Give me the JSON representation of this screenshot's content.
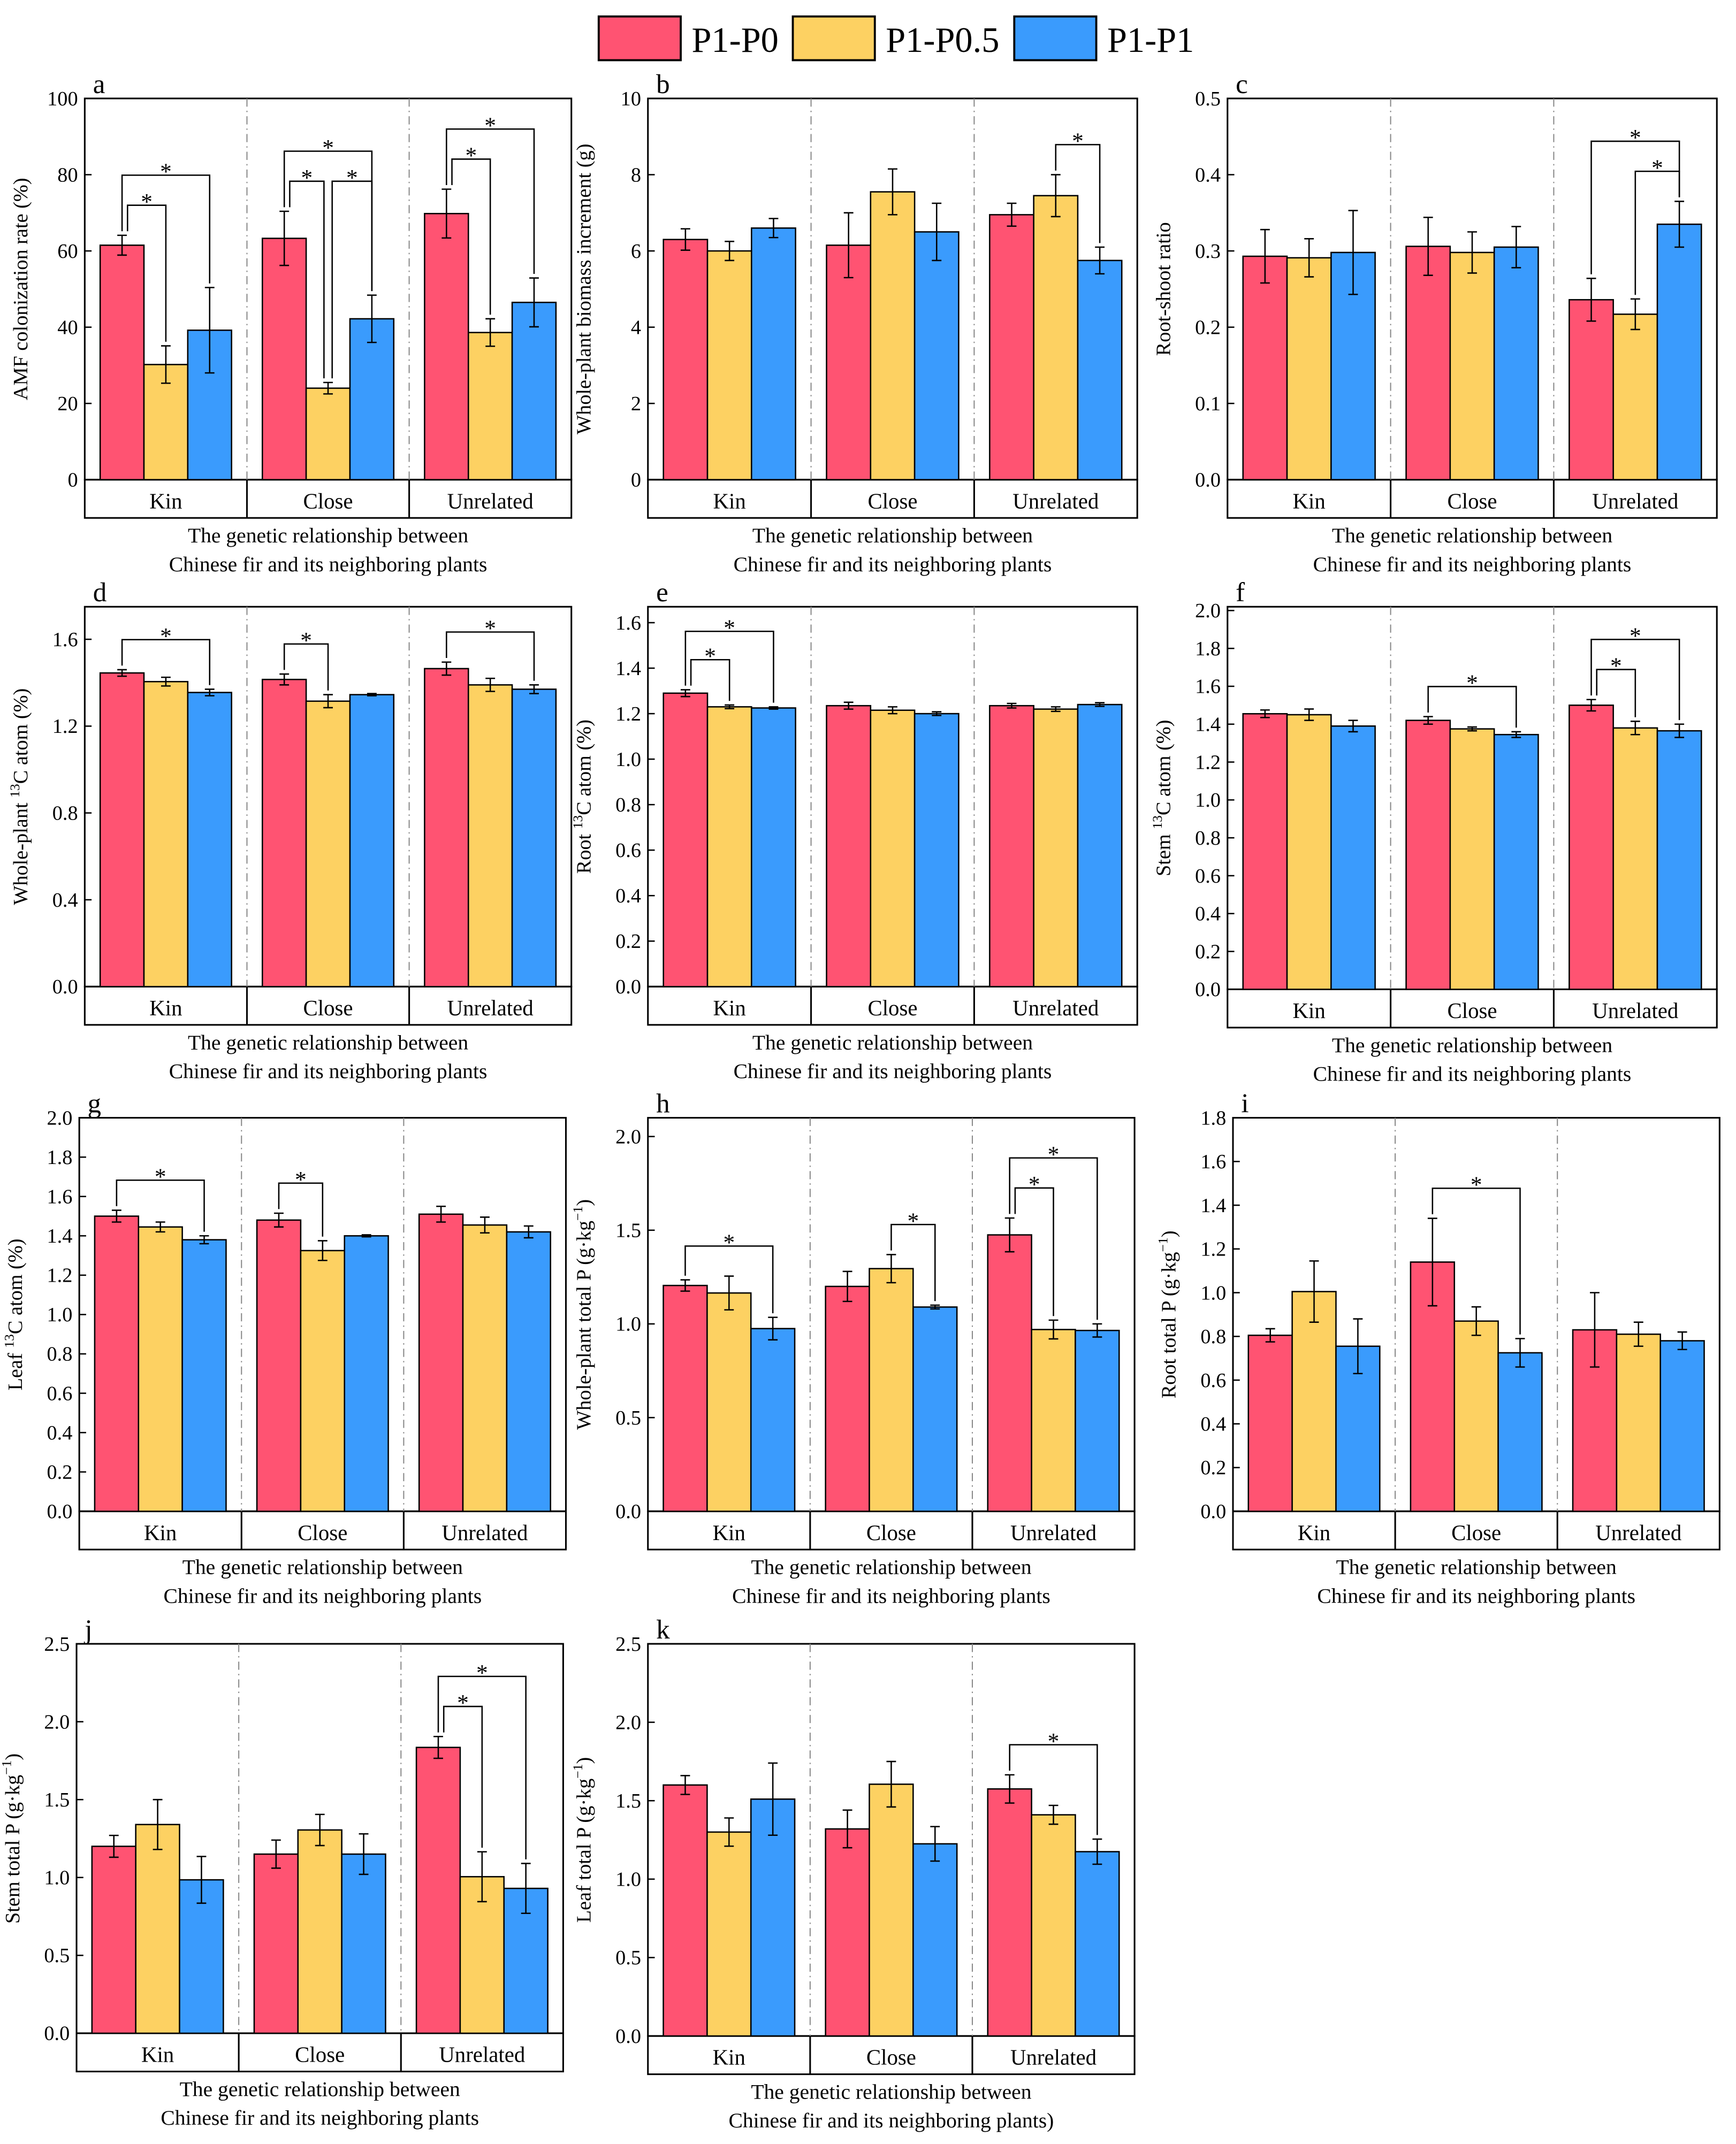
{
  "legend": [
    {
      "label": "P1-P0",
      "color": "#ff5372"
    },
    {
      "label": "P1-P0.5",
      "color": "#fdd162"
    },
    {
      "label": "P1-P1",
      "color": "#3a9bfd"
    }
  ],
  "chart_data": [
    {
      "id": "a",
      "type": "bar",
      "ylabel": {
        "pre": "AMF colonization rate (%)",
        "sup": "",
        "post": ""
      },
      "xlabel": [
        "The genetic relationship between",
        "Chinese fir and its neighboring plants"
      ],
      "categories": [
        "Kin",
        "Close",
        "Unrelated"
      ],
      "ylim": [
        0,
        100
      ],
      "yticks": [
        "0",
        "20",
        "40",
        "60",
        "80",
        "100"
      ],
      "ytick_values": [
        0,
        20,
        40,
        60,
        80,
        100
      ],
      "series": [
        {
          "name": "P1-P0",
          "values": [
            61.5,
            63.3,
            69.8
          ],
          "errors": [
            2.6,
            7.1,
            6.4
          ]
        },
        {
          "name": "P1-P0.5",
          "values": [
            30.2,
            24.0,
            38.6
          ],
          "errors": [
            4.9,
            1.5,
            3.6
          ]
        },
        {
          "name": "P1-P1",
          "values": [
            39.2,
            42.2,
            46.5
          ],
          "errors": [
            11.2,
            6.2,
            6.4
          ]
        }
      ],
      "significance": [
        [
          0,
          0,
          1
        ],
        [
          0,
          0,
          2
        ],
        [
          1,
          0,
          1
        ],
        [
          1,
          1,
          2
        ],
        [
          1,
          0,
          2
        ],
        [
          2,
          0,
          1
        ],
        [
          2,
          0,
          2
        ]
      ]
    },
    {
      "id": "b",
      "type": "bar",
      "ylabel": {
        "pre": "Whole-plant biomass increment (g)",
        "sup": "",
        "post": ""
      },
      "xlabel": [
        "The genetic relationship between",
        "Chinese fir and its neighboring plants"
      ],
      "categories": [
        "Kin",
        "Close",
        "Unrelated"
      ],
      "ylim": [
        0,
        10
      ],
      "yticks": [
        "0",
        "2",
        "4",
        "6",
        "8",
        "10"
      ],
      "ytick_values": [
        0,
        2,
        4,
        6,
        8,
        10
      ],
      "series": [
        {
          "name": "P1-P0",
          "values": [
            6.3,
            6.15,
            6.95
          ],
          "errors": [
            0.28,
            0.85,
            0.3
          ]
        },
        {
          "name": "P1-P0.5",
          "values": [
            6.0,
            7.55,
            7.45
          ],
          "errors": [
            0.25,
            0.6,
            0.55
          ]
        },
        {
          "name": "P1-P1",
          "values": [
            6.6,
            6.5,
            5.75
          ],
          "errors": [
            0.25,
            0.75,
            0.35
          ]
        }
      ],
      "significance": [
        [
          2,
          1,
          2
        ]
      ]
    },
    {
      "id": "c",
      "type": "bar",
      "ylabel": {
        "pre": "Root-shoot ratio",
        "sup": "",
        "post": ""
      },
      "xlabel": [
        "The genetic relationship between",
        "Chinese fir and its neighboring plants"
      ],
      "categories": [
        "Kin",
        "Close",
        "Unrelated"
      ],
      "ylim": [
        0,
        0.5
      ],
      "yticks": [
        "0.0",
        "0.1",
        "0.2",
        "0.3",
        "0.4",
        "0.5"
      ],
      "ytick_values": [
        0,
        0.1,
        0.2,
        0.3,
        0.4,
        0.5
      ],
      "series": [
        {
          "name": "P1-P0",
          "values": [
            0.293,
            0.306,
            0.236
          ],
          "errors": [
            0.035,
            0.038,
            0.028
          ]
        },
        {
          "name": "P1-P0.5",
          "values": [
            0.291,
            0.298,
            0.217
          ],
          "errors": [
            0.025,
            0.027,
            0.02
          ]
        },
        {
          "name": "P1-P1",
          "values": [
            0.298,
            0.305,
            0.335
          ],
          "errors": [
            0.055,
            0.027,
            0.03
          ]
        }
      ],
      "significance": [
        [
          2,
          1,
          2
        ],
        [
          2,
          0,
          2
        ]
      ]
    },
    {
      "id": "d",
      "type": "bar",
      "ylabel": {
        "pre": "Whole-plant ",
        "sup": "13",
        "post": "C atom (%)"
      },
      "xlabel": [
        "The genetic relationship between",
        "Chinese fir and its neighboring plants"
      ],
      "categories": [
        "Kin",
        "Close",
        "Unrelated"
      ],
      "ylim": [
        0,
        1.75
      ],
      "yticks": [
        "0.0",
        "0.4",
        "0.8",
        "1.2",
        "1.6"
      ],
      "ytick_values": [
        0,
        0.4,
        0.8,
        1.2,
        1.6
      ],
      "series": [
        {
          "name": "P1-P0",
          "values": [
            1.445,
            1.415,
            1.465
          ],
          "errors": [
            0.015,
            0.025,
            0.03
          ]
        },
        {
          "name": "P1-P0.5",
          "values": [
            1.405,
            1.315,
            1.39
          ],
          "errors": [
            0.02,
            0.03,
            0.03
          ]
        },
        {
          "name": "P1-P1",
          "values": [
            1.355,
            1.345,
            1.37
          ],
          "errors": [
            0.015,
            0.005,
            0.02
          ]
        }
      ],
      "significance": [
        [
          0,
          0,
          2
        ],
        [
          1,
          0,
          1
        ],
        [
          2,
          0,
          2
        ]
      ]
    },
    {
      "id": "e",
      "type": "bar",
      "ylabel": {
        "pre": "Root ",
        "sup": "13",
        "post": "C atom (%)"
      },
      "xlabel": [
        "The genetic relationship between",
        "Chinese fir and its neighboring plants"
      ],
      "categories": [
        "Kin",
        "Close",
        "Unrelated"
      ],
      "ylim": [
        0,
        1.67
      ],
      "yticks": [
        "0.0",
        "0.2",
        "0.4",
        "0.6",
        "0.8",
        "1.0",
        "1.2",
        "1.4",
        "1.6"
      ],
      "ytick_values": [
        0,
        0.2,
        0.4,
        0.6,
        0.8,
        1.0,
        1.2,
        1.4,
        1.6
      ],
      "series": [
        {
          "name": "P1-P0",
          "values": [
            1.29,
            1.235,
            1.235
          ],
          "errors": [
            0.015,
            0.015,
            0.01
          ]
        },
        {
          "name": "P1-P0.5",
          "values": [
            1.23,
            1.215,
            1.22
          ],
          "errors": [
            0.008,
            0.015,
            0.01
          ]
        },
        {
          "name": "P1-P1",
          "values": [
            1.225,
            1.2,
            1.24
          ],
          "errors": [
            0.005,
            0.008,
            0.008
          ]
        }
      ],
      "significance": [
        [
          0,
          0,
          1
        ],
        [
          0,
          0,
          2
        ]
      ]
    },
    {
      "id": "f",
      "type": "bar",
      "ylabel": {
        "pre": "Stem ",
        "sup": "13",
        "post": "C atom (%)"
      },
      "xlabel": [
        "The genetic relationship between",
        "Chinese fir and its neighboring plants"
      ],
      "categories": [
        "Kin",
        "Close",
        "Unrelated"
      ],
      "ylim": [
        0,
        2.02
      ],
      "yticks": [
        "0.0",
        "0.2",
        "0.4",
        "0.6",
        "0.8",
        "1.0",
        "1.2",
        "1.4",
        "1.6",
        "1.8",
        "2.0"
      ],
      "ytick_values": [
        0,
        0.2,
        0.4,
        0.6,
        0.8,
        1.0,
        1.2,
        1.4,
        1.6,
        1.8,
        2.0
      ],
      "series": [
        {
          "name": "P1-P0",
          "values": [
            1.455,
            1.42,
            1.5
          ],
          "errors": [
            0.02,
            0.02,
            0.03
          ]
        },
        {
          "name": "P1-P0.5",
          "values": [
            1.45,
            1.375,
            1.38
          ],
          "errors": [
            0.03,
            0.01,
            0.035
          ]
        },
        {
          "name": "P1-P1",
          "values": [
            1.39,
            1.345,
            1.365
          ],
          "errors": [
            0.03,
            0.015,
            0.035
          ]
        }
      ],
      "significance": [
        [
          1,
          0,
          2
        ],
        [
          2,
          0,
          1
        ],
        [
          2,
          0,
          2
        ]
      ]
    },
    {
      "id": "g",
      "type": "bar",
      "ylabel": {
        "pre": "Leaf ",
        "sup": "13",
        "post": "C atom (%)"
      },
      "xlabel": [
        "The genetic relationship between",
        "Chinese fir and its neighboring plants"
      ],
      "categories": [
        "Kin",
        "Close",
        "Unrelated"
      ],
      "ylim": [
        0,
        2.0
      ],
      "yticks": [
        "0.0",
        "0.2",
        "0.4",
        "0.6",
        "0.8",
        "1.0",
        "1.2",
        "1.4",
        "1.6",
        "1.8",
        "2.0"
      ],
      "ytick_values": [
        0,
        0.2,
        0.4,
        0.6,
        0.8,
        1.0,
        1.2,
        1.4,
        1.6,
        1.8,
        2.0
      ],
      "series": [
        {
          "name": "P1-P0",
          "values": [
            1.5,
            1.48,
            1.51
          ],
          "errors": [
            0.03,
            0.035,
            0.04
          ]
        },
        {
          "name": "P1-P0.5",
          "values": [
            1.445,
            1.325,
            1.455
          ],
          "errors": [
            0.025,
            0.05,
            0.04
          ]
        },
        {
          "name": "P1-P1",
          "values": [
            1.38,
            1.4,
            1.42
          ],
          "errors": [
            0.02,
            0.005,
            0.03
          ]
        }
      ],
      "significance": [
        [
          0,
          0,
          2
        ],
        [
          1,
          0,
          1
        ]
      ]
    },
    {
      "id": "h",
      "type": "bar",
      "ylabel": {
        "pre": "Whole-plant total P (g·kg",
        "sup": "−1",
        "post": ")"
      },
      "xlabel": [
        "The genetic relationship between",
        "Chinese fir and its neighboring plants"
      ],
      "categories": [
        "Kin",
        "Close",
        "Unrelated"
      ],
      "ylim": [
        0,
        2.1
      ],
      "yticks": [
        "0.0",
        "0.5",
        "1.0",
        "1.5",
        "2.0"
      ],
      "ytick_values": [
        0,
        0.5,
        1.0,
        1.5,
        2.0
      ],
      "series": [
        {
          "name": "P1-P0",
          "values": [
            1.205,
            1.2,
            1.475
          ],
          "errors": [
            0.03,
            0.08,
            0.09
          ]
        },
        {
          "name": "P1-P0.5",
          "values": [
            1.165,
            1.295,
            0.97
          ],
          "errors": [
            0.09,
            0.075,
            0.05
          ]
        },
        {
          "name": "P1-P1",
          "values": [
            0.975,
            1.09,
            0.965
          ],
          "errors": [
            0.06,
            0.01,
            0.035
          ]
        }
      ],
      "significance": [
        [
          0,
          0,
          2
        ],
        [
          1,
          1,
          2
        ],
        [
          2,
          0,
          1
        ],
        [
          2,
          0,
          2
        ]
      ]
    },
    {
      "id": "i",
      "type": "bar",
      "ylabel": {
        "pre": "Root total P (g·kg",
        "sup": "−1",
        "post": ")"
      },
      "xlabel": [
        "The genetic relationship between",
        "Chinese fir and its neighboring plants"
      ],
      "categories": [
        "Kin",
        "Close",
        "Unrelated"
      ],
      "ylim": [
        0,
        1.8
      ],
      "yticks": [
        "0.0",
        "0.2",
        "0.4",
        "0.6",
        "0.8",
        "1.0",
        "1.2",
        "1.4",
        "1.6",
        "1.8"
      ],
      "ytick_values": [
        0,
        0.2,
        0.4,
        0.6,
        0.8,
        1.0,
        1.2,
        1.4,
        1.6,
        1.8
      ],
      "series": [
        {
          "name": "P1-P0",
          "values": [
            0.805,
            1.14,
            0.83
          ],
          "errors": [
            0.03,
            0.2,
            0.17
          ]
        },
        {
          "name": "P1-P0.5",
          "values": [
            1.005,
            0.87,
            0.81
          ],
          "errors": [
            0.14,
            0.065,
            0.055
          ]
        },
        {
          "name": "P1-P1",
          "values": [
            0.755,
            0.725,
            0.78
          ],
          "errors": [
            0.125,
            0.065,
            0.04
          ]
        }
      ],
      "significance": [
        [
          1,
          0,
          2
        ]
      ]
    },
    {
      "id": "j",
      "type": "bar",
      "ylabel": {
        "pre": "Stem total P (g·kg",
        "sup": "−1",
        "post": ")"
      },
      "xlabel": [
        "The genetic relationship between",
        "Chinese fir and its neighboring plants"
      ],
      "categories": [
        "Kin",
        "Close",
        "Unrelated"
      ],
      "ylim": [
        0,
        2.5
      ],
      "yticks": [
        "0.0",
        "0.5",
        "1.0",
        "1.5",
        "2.0",
        "2.5"
      ],
      "ytick_values": [
        0,
        0.5,
        1.0,
        1.5,
        2.0,
        2.5
      ],
      "series": [
        {
          "name": "P1-P0",
          "values": [
            1.2,
            1.15,
            1.835
          ],
          "errors": [
            0.07,
            0.09,
            0.07
          ]
        },
        {
          "name": "P1-P0.5",
          "values": [
            1.34,
            1.305,
            1.005
          ],
          "errors": [
            0.16,
            0.1,
            0.16
          ]
        },
        {
          "name": "P1-P1",
          "values": [
            0.985,
            1.15,
            0.93
          ],
          "errors": [
            0.15,
            0.13,
            0.16
          ]
        }
      ],
      "significance": [
        [
          2,
          0,
          1
        ],
        [
          2,
          0,
          2
        ]
      ]
    },
    {
      "id": "k",
      "type": "bar",
      "ylabel": {
        "pre": "Leaf total P (g·kg",
        "sup": "−1",
        "post": ")"
      },
      "xlabel": [
        "The genetic relationship between",
        "Chinese fir and its neighboring plants)"
      ],
      "categories": [
        "Kin",
        "Close",
        "Unrelated"
      ],
      "ylim": [
        0,
        2.5
      ],
      "yticks": [
        "0.0",
        "0.5",
        "1.0",
        "1.5",
        "2.0",
        "2.5"
      ],
      "ytick_values": [
        0,
        0.5,
        1.0,
        1.5,
        2.0,
        2.5
      ],
      "series": [
        {
          "name": "P1-P0",
          "values": [
            1.6,
            1.32,
            1.575
          ],
          "errors": [
            0.06,
            0.12,
            0.09
          ]
        },
        {
          "name": "P1-P0.5",
          "values": [
            1.3,
            1.605,
            1.41
          ],
          "errors": [
            0.09,
            0.145,
            0.06
          ]
        },
        {
          "name": "P1-P1",
          "values": [
            1.51,
            1.225,
            1.175
          ],
          "errors": [
            0.23,
            0.11,
            0.08
          ]
        }
      ],
      "significance": [
        [
          2,
          0,
          2
        ]
      ]
    }
  ],
  "sig_marker": "*"
}
